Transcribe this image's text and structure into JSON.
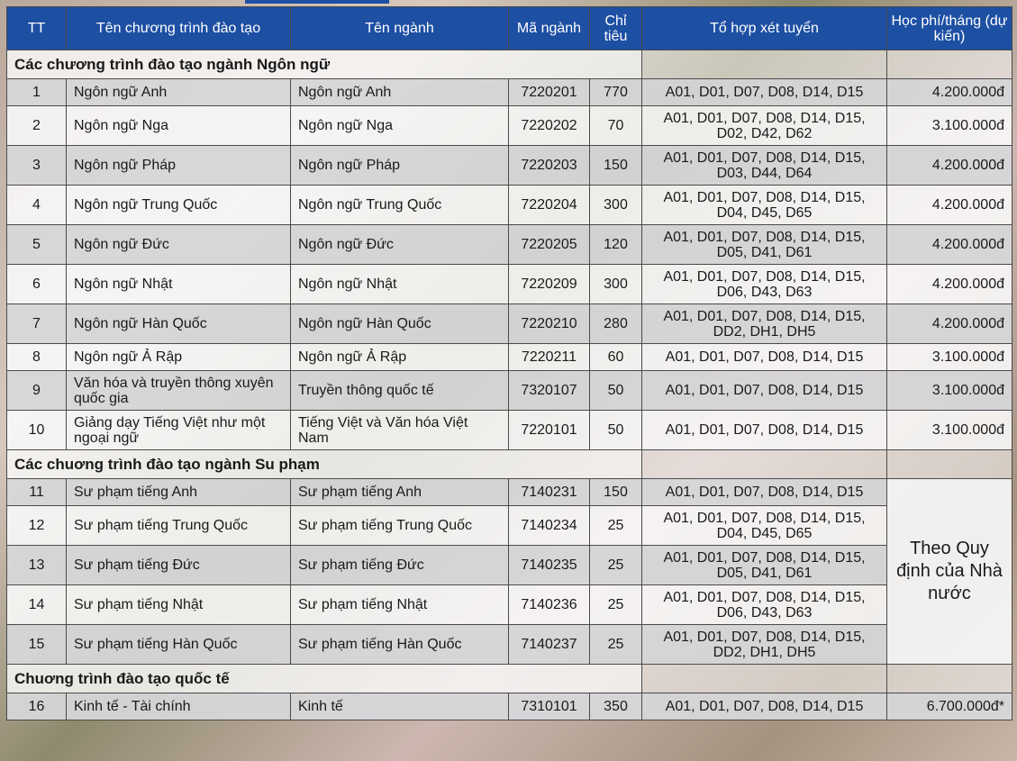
{
  "headers": [
    "TT",
    "Tên chương trình đào tạo",
    "Tên ngành",
    "Mã ngành",
    "Chỉ tiêu",
    "Tổ hợp xét tuyển",
    "Học phí/tháng (dự kiến)"
  ],
  "sections": [
    {
      "title": "Các chương trình đào tạo ngành Ngôn ngữ",
      "rows": [
        {
          "tt": "1",
          "program": "Ngôn ngữ Anh",
          "major": "Ngôn ngữ Anh",
          "code": "7220201",
          "quota": "770",
          "combos": "A01, D01, D07, D08, D14, D15",
          "fee": "4.200.000đ"
        },
        {
          "tt": "2",
          "program": "Ngôn ngữ Nga",
          "major": "Ngôn ngữ Nga",
          "code": "7220202",
          "quota": "70",
          "combos": "A01, D01, D07, D08, D14, D15, D02, D42, D62",
          "fee": "3.100.000đ"
        },
        {
          "tt": "3",
          "program": "Ngôn ngữ Pháp",
          "major": "Ngôn ngữ Pháp",
          "code": "7220203",
          "quota": "150",
          "combos": "A01, D01, D07, D08, D14, D15, D03, D44, D64",
          "fee": "4.200.000đ"
        },
        {
          "tt": "4",
          "program": "Ngôn ngữ Trung Quốc",
          "major": "Ngôn ngữ Trung Quốc",
          "code": "7220204",
          "quota": "300",
          "combos": "A01, D01, D07, D08, D14, D15, D04, D45, D65",
          "fee": "4.200.000đ"
        },
        {
          "tt": "5",
          "program": "Ngôn ngữ Đức",
          "major": "Ngôn ngữ Đức",
          "code": "7220205",
          "quota": "120",
          "combos": "A01, D01, D07, D08, D14, D15, D05, D41, D61",
          "fee": "4.200.000đ"
        },
        {
          "tt": "6",
          "program": "Ngôn ngữ Nhật",
          "major": "Ngôn ngữ Nhật",
          "code": "7220209",
          "quota": "300",
          "combos": "A01, D01, D07, D08, D14, D15, D06, D43, D63",
          "fee": "4.200.000đ"
        },
        {
          "tt": "7",
          "program": "Ngôn ngữ Hàn Quốc",
          "major": "Ngôn ngữ Hàn Quốc",
          "code": "7220210",
          "quota": "280",
          "combos": "A01, D01, D07, D08, D14, D15, DD2, DH1, DH5",
          "fee": "4.200.000đ"
        },
        {
          "tt": "8",
          "program": "Ngôn ngữ Ả Rập",
          "major": "Ngôn ngữ Ả Rập",
          "code": "7220211",
          "quota": "60",
          "combos": "A01, D01, D07, D08, D14, D15",
          "fee": "3.100.000đ"
        },
        {
          "tt": "9",
          "program": "Văn hóa và truyền thông xuyên quốc gia",
          "major": "Truyền thông quốc tế",
          "code": "7320107",
          "quota": "50",
          "combos": "A01, D01, D07, D08, D14, D15",
          "fee": "3.100.000đ"
        },
        {
          "tt": "10",
          "program": "Giảng dạy Tiếng Việt như một ngoại ngữ",
          "major": "Tiếng Việt và Văn hóa Việt Nam",
          "code": "7220101",
          "quota": "50",
          "combos": "A01, D01, D07, D08, D14, D15",
          "fee": "3.100.000đ"
        }
      ]
    },
    {
      "title": "Các chuơng trình đào tạo ngành Su phạm",
      "shared_fee": "Theo Quy định của Nhà nước",
      "rows": [
        {
          "tt": "11",
          "program": "Sư phạm tiếng Anh",
          "major": "Sư phạm tiếng Anh",
          "code": "7140231",
          "quota": "150",
          "combos": "A01, D01, D07, D08, D14, D15"
        },
        {
          "tt": "12",
          "program": "Sư phạm tiếng Trung Quốc",
          "major": "Sư phạm tiếng Trung Quốc",
          "code": "7140234",
          "quota": "25",
          "combos": "A01, D01, D07, D08, D14, D15, D04, D45, D65"
        },
        {
          "tt": "13",
          "program": "Sư phạm tiếng Đức",
          "major": "Sư phạm tiếng Đức",
          "code": "7140235",
          "quota": "25",
          "combos": "A01, D01, D07, D08, D14, D15, D05, D41, D61"
        },
        {
          "tt": "14",
          "program": "Sư phạm tiếng Nhật",
          "major": "Sư phạm tiếng Nhật",
          "code": "7140236",
          "quota": "25",
          "combos": "A01, D01, D07, D08, D14, D15, D06, D43, D63"
        },
        {
          "tt": "15",
          "program": "Sư phạm tiếng Hàn Quốc",
          "major": "Sư phạm tiếng Hàn Quốc",
          "code": "7140237",
          "quota": "25",
          "combos": "A01, D01, D07, D08, D14, D15, DD2, DH1, DH5"
        }
      ]
    },
    {
      "title": "Chuơng trình đào tạo quốc tế",
      "rows": [
        {
          "tt": "16",
          "program": "Kinh tế - Tài chính",
          "major": "Kinh tế",
          "code": "7310101",
          "quota": "350",
          "combos": "A01, D01, D07, D08, D14, D15",
          "fee": "6.700.000đ*"
        }
      ]
    }
  ],
  "colors": {
    "header_bg": "#1d4fa3",
    "header_text": "#ffffff",
    "row_gray": "#d7d7da",
    "row_white": "#fafafa"
  }
}
